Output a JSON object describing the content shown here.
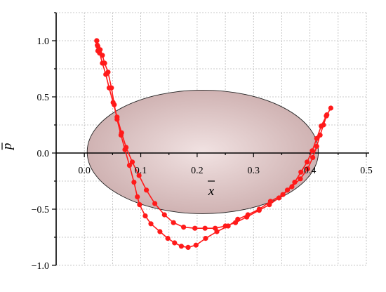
{
  "chart_data": {
    "type": "scatter",
    "xlabel": "x",
    "ylabel": "p",
    "xlim": [
      -0.05,
      0.5
    ],
    "ylim": [
      -1.0,
      1.25
    ],
    "x_ticks": [
      0.0,
      0.1,
      0.2,
      0.3,
      0.4,
      0.5
    ],
    "x_tick_labels": [
      "0.0",
      "0.1",
      "0.2",
      "0.3",
      "0.4",
      "0.5"
    ],
    "y_ticks": [
      -1.0,
      -0.5,
      0.0,
      0.5,
      1.0
    ],
    "y_tick_labels": [
      "−1.0",
      "−0.5",
      "0.0",
      "0.5",
      "1.0"
    ],
    "grid": true,
    "region": {
      "shape": "ellipse",
      "center": [
        0.21,
        0.01
      ],
      "semi_axis_x": 0.205,
      "semi_axis_y": 0.55,
      "fill": "#c9a9a9",
      "edge": "#222222"
    },
    "series": [
      {
        "color": "#ff1a1a",
        "points": [
          [
            0.022,
            1.0
          ],
          [
            0.023,
            0.96
          ],
          [
            0.024,
            0.91
          ],
          [
            0.028,
            0.92
          ],
          [
            0.032,
            0.87
          ],
          [
            0.036,
            0.8
          ],
          [
            0.042,
            0.72
          ],
          [
            0.048,
            0.58
          ],
          [
            0.053,
            0.43
          ],
          [
            0.058,
            0.3
          ],
          [
            0.065,
            0.16
          ],
          [
            0.072,
            0.03
          ],
          [
            0.08,
            -0.11
          ],
          [
            0.088,
            -0.26
          ],
          [
            0.094,
            -0.39
          ],
          [
            0.098,
            -0.46
          ],
          [
            0.108,
            -0.56
          ],
          [
            0.118,
            -0.63
          ],
          [
            0.134,
            -0.7
          ],
          [
            0.148,
            -0.76
          ],
          [
            0.16,
            -0.8
          ],
          [
            0.172,
            -0.83
          ],
          [
            0.184,
            -0.84
          ],
          [
            0.198,
            -0.82
          ],
          [
            0.215,
            -0.76
          ],
          [
            0.235,
            -0.7
          ],
          [
            0.255,
            -0.65
          ],
          [
            0.272,
            -0.59
          ],
          [
            0.29,
            -0.55
          ],
          [
            0.31,
            -0.5
          ],
          [
            0.33,
            -0.43
          ],
          [
            0.352,
            -0.37
          ],
          [
            0.368,
            -0.3
          ],
          [
            0.383,
            -0.23
          ],
          [
            0.396,
            -0.14
          ],
          [
            0.405,
            -0.04
          ],
          [
            0.412,
            0.06
          ],
          [
            0.418,
            0.16
          ],
          [
            0.424,
            0.25
          ],
          [
            0.43,
            0.34
          ],
          [
            0.437,
            0.4
          ],
          [
            0.429,
            0.33
          ],
          [
            0.42,
            0.24
          ],
          [
            0.412,
            0.13
          ],
          [
            0.404,
            0.02
          ],
          [
            0.395,
            -0.08
          ],
          [
            0.384,
            -0.17
          ],
          [
            0.373,
            -0.26
          ],
          [
            0.36,
            -0.33
          ],
          [
            0.345,
            -0.4
          ],
          [
            0.328,
            -0.46
          ],
          [
            0.31,
            -0.51
          ],
          [
            0.288,
            -0.57
          ],
          [
            0.268,
            -0.62
          ],
          [
            0.25,
            -0.65
          ],
          [
            0.232,
            -0.67
          ],
          [
            0.214,
            -0.67
          ],
          [
            0.196,
            -0.67
          ],
          [
            0.176,
            -0.66
          ],
          [
            0.158,
            -0.62
          ],
          [
            0.142,
            -0.55
          ],
          [
            0.125,
            -0.45
          ],
          [
            0.11,
            -0.33
          ],
          [
            0.097,
            -0.2
          ],
          [
            0.085,
            -0.08
          ],
          [
            0.074,
            0.05
          ],
          [
            0.066,
            0.18
          ],
          [
            0.058,
            0.32
          ],
          [
            0.051,
            0.45
          ],
          [
            0.044,
            0.58
          ],
          [
            0.038,
            0.7
          ],
          [
            0.032,
            0.8
          ],
          [
            0.027,
            0.89
          ],
          [
            0.024,
            0.95
          ],
          [
            0.022,
            1.0
          ]
        ]
      }
    ]
  }
}
